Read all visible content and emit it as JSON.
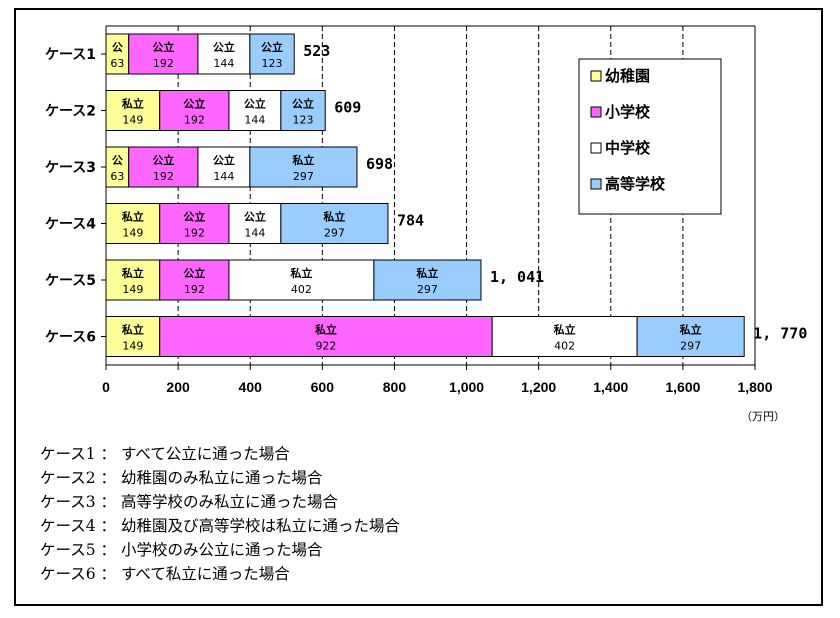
{
  "chart_data": {
    "type": "bar",
    "orientation": "horizontal",
    "stacked": true,
    "categories": [
      "ケース1",
      "ケース2",
      "ケース3",
      "ケース4",
      "ケース5",
      "ケース6"
    ],
    "series": [
      {
        "name": "幼稚園",
        "color": "#ffff99",
        "values": [
          63,
          149,
          63,
          149,
          149,
          149
        ],
        "labels": [
          "公",
          "私立",
          "公",
          "私立",
          "私立",
          "私立"
        ]
      },
      {
        "name": "小学校",
        "color": "#ff66ff",
        "values": [
          192,
          192,
          192,
          192,
          192,
          922
        ],
        "labels": [
          "公立",
          "公立",
          "公立",
          "公立",
          "公立",
          "私立"
        ]
      },
      {
        "name": "中学校",
        "color": "#ffffff",
        "values": [
          144,
          144,
          144,
          144,
          402,
          402
        ],
        "labels": [
          "公立",
          "公立",
          "公立",
          "公立",
          "私立",
          "私立"
        ]
      },
      {
        "name": "高等学校",
        "color": "#99ccff",
        "values": [
          123,
          123,
          297,
          297,
          297,
          297
        ],
        "labels": [
          "公立",
          "公立",
          "私立",
          "私立",
          "私立",
          "私立"
        ]
      }
    ],
    "totals": [
      "523",
      "609",
      "698",
      "784",
      "1, 041",
      "1, 770"
    ],
    "xlim": [
      0,
      1800
    ],
    "xticks": [
      {
        "value": 0,
        "label": "0"
      },
      {
        "value": 200,
        "label": "200"
      },
      {
        "value": 400,
        "label": "400"
      },
      {
        "value": 600,
        "label": "600"
      },
      {
        "value": 800,
        "label": "800"
      },
      {
        "value": 1000,
        "label": "1,000"
      },
      {
        "value": 1200,
        "label": "1,200"
      },
      {
        "value": 1400,
        "label": "1,400"
      },
      {
        "value": 1600,
        "label": "1,600"
      },
      {
        "value": 1800,
        "label": "1,800"
      }
    ],
    "unit": "（万円）",
    "grid": "vertical-dashed",
    "legend_position": "top-right"
  },
  "notes": [
    "ケース1 ： すべて公立に通った場合",
    "ケース2 ： 幼稚園のみ私立に通った場合",
    "ケース3 ： 高等学校のみ私立に通った場合",
    "ケース4 ： 幼稚園及び高等学校は私立に通った場合",
    "ケース5 ： 小学校のみ公立に通った場合",
    "ケース6 ： すべて私立に通った場合"
  ]
}
